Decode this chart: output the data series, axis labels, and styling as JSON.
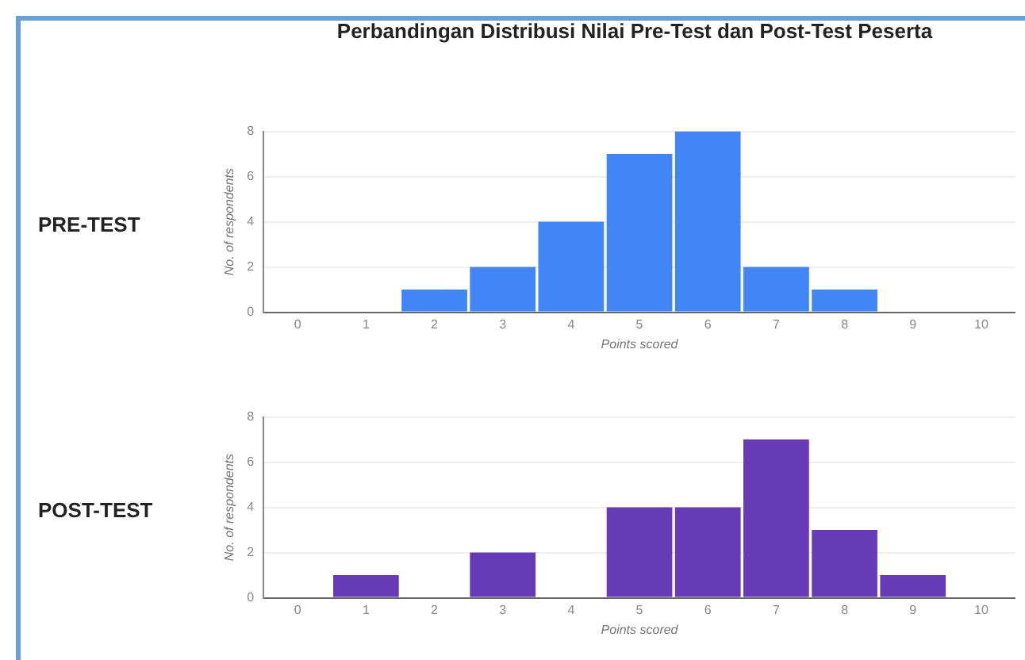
{
  "chart_data": [
    {
      "type": "bar",
      "title": "Perbandingan Distribusi Nilai Pre-Test dan Post-Test Peserta",
      "subtitle": "PRE-TEST",
      "xlabel": "Points scored",
      "ylabel": "No. of respondents",
      "categories": [
        "0",
        "1",
        "2",
        "3",
        "4",
        "5",
        "6",
        "7",
        "8",
        "9",
        "10"
      ],
      "values": [
        0,
        0,
        1,
        2,
        4,
        7,
        8,
        2,
        1,
        0,
        0
      ],
      "color": "#4285f4",
      "ylim": [
        0,
        8
      ],
      "yticks": [
        0,
        2,
        4,
        6,
        8
      ],
      "grid": "y"
    },
    {
      "type": "bar",
      "subtitle": "POST-TEST",
      "xlabel": "Points scored",
      "ylabel": "No. of respondents",
      "categories": [
        "0",
        "1",
        "2",
        "3",
        "4",
        "5",
        "6",
        "7",
        "8",
        "9",
        "10"
      ],
      "values": [
        0,
        1,
        0,
        2,
        0,
        4,
        4,
        7,
        3,
        1,
        0
      ],
      "color": "#673ab7",
      "ylim": [
        0,
        8
      ],
      "yticks": [
        0,
        2,
        4,
        6,
        8
      ],
      "grid": "y"
    }
  ]
}
